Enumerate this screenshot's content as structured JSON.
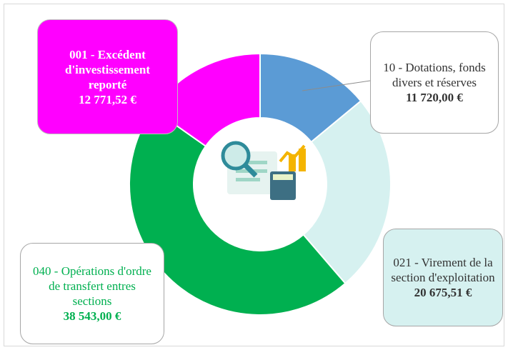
{
  "chart_data": {
    "type": "donut",
    "categories": [
      "10 - Dotations, fonds divers et réserves",
      "021 - Virement de la section d'exploitation",
      "040 - Opérations d'ordre de transfert entres sections",
      "001 -  Excédent d'investissement reporté"
    ],
    "values": [
      11720.0,
      20675.51,
      38543.0,
      12771.52
    ],
    "value_labels": [
      "11 720,00 €",
      "20 675,51 €",
      "38 543,00 €",
      "12 771,52 €"
    ],
    "colors": [
      "#5b9bd5",
      "#d6f1f0",
      "#00b050",
      "#ff00ff"
    ]
  }
}
